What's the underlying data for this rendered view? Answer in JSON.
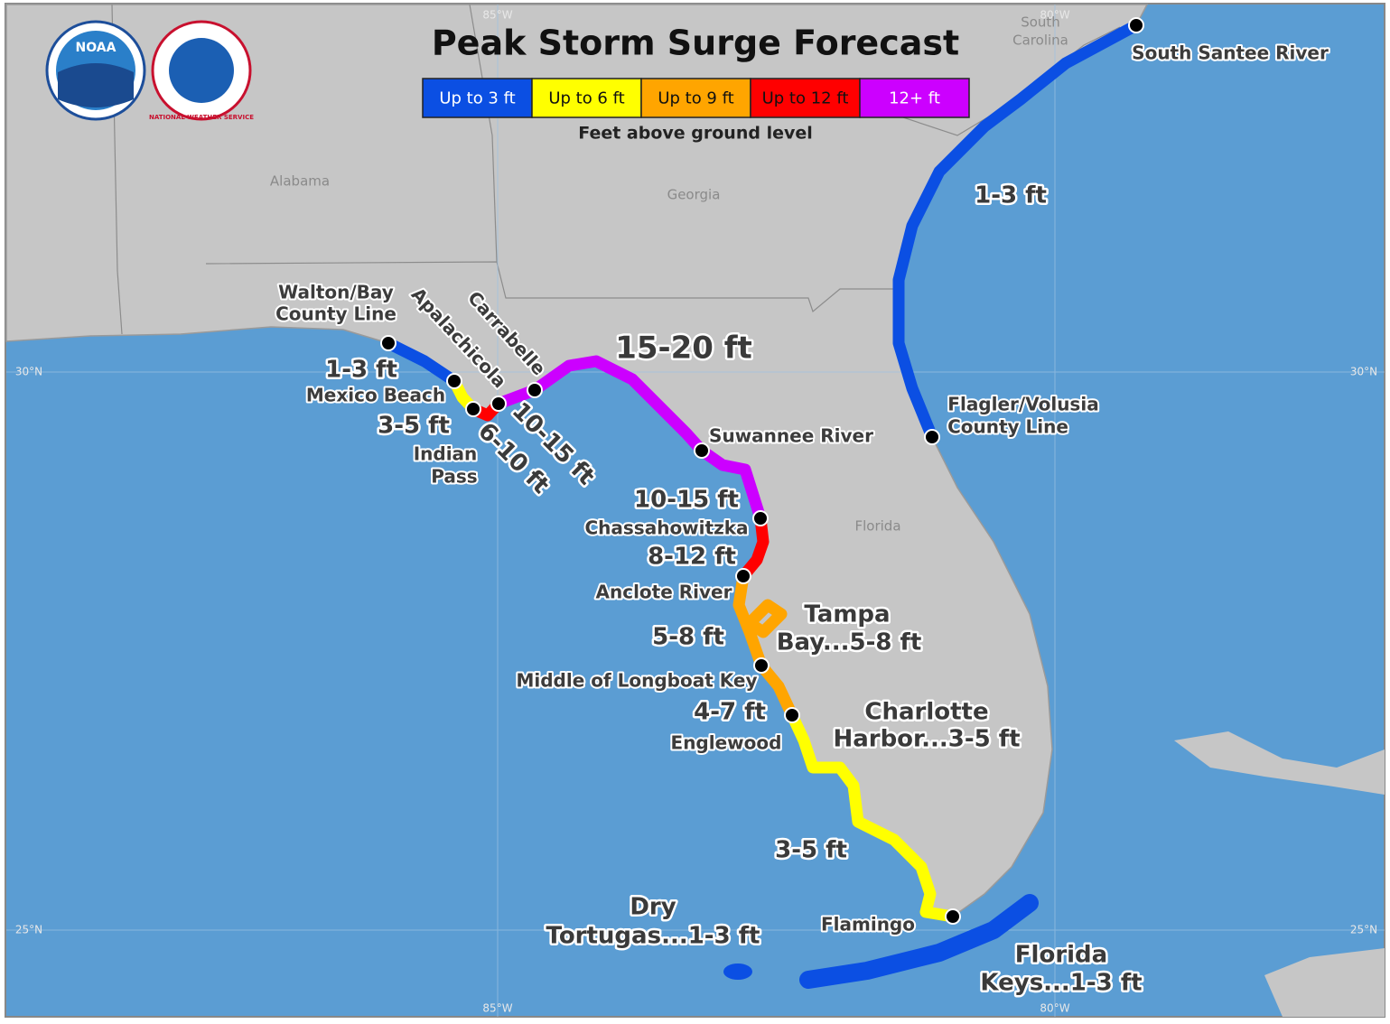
{
  "header": {
    "title": "Peak Storm Surge Forecast",
    "logos": [
      "NOAA",
      "NATIONAL WEATHER SERVICE"
    ]
  },
  "legend": {
    "items": [
      {
        "label": "Up to 3 ft",
        "color": "#0b4fe3"
      },
      {
        "label": "Up to 6 ft",
        "color": "#ffff00"
      },
      {
        "label": "Up to 9 ft",
        "color": "#ffa500"
      },
      {
        "label": "Up to 12 ft",
        "color": "#ff0000"
      },
      {
        "label": "12+ ft",
        "color": "#cc00ff"
      }
    ],
    "caption": "Feet above ground level"
  },
  "grid_labels": {
    "top": [
      "85°W",
      "80°W"
    ],
    "bottom": [
      "85°W",
      "80°W"
    ],
    "left": [
      "30°N",
      "25°N"
    ],
    "right": [
      "30°N",
      "25°N"
    ]
  },
  "states": [
    [
      "Alabama"
    ],
    [
      "Georgia"
    ],
    [
      "Florida"
    ],
    [
      "South",
      "Carolina"
    ]
  ],
  "locations": [
    [
      "South Santee River"
    ],
    [
      "Flagler/Volusia",
      "County Line"
    ],
    [
      "Walton/Bay",
      "County Line"
    ],
    [
      "Apalachicola"
    ],
    [
      "Carrabelle"
    ],
    [
      "Mexico Beach"
    ],
    [
      "Indian",
      "Pass"
    ],
    [
      "Suwannee River"
    ],
    [
      "Chassahowitzka"
    ],
    [
      "Anclote River"
    ],
    [
      "Middle of Longboat Key"
    ],
    [
      "Englewood"
    ],
    [
      "Flamingo"
    ]
  ],
  "surge": [
    [
      "1-3 ft"
    ],
    [
      "15-20 ft"
    ],
    [
      "1-3 ft"
    ],
    [
      "3-5 ft"
    ],
    [
      "6-10 ft"
    ],
    [
      "10-15 ft"
    ],
    [
      "10-15 ft"
    ],
    [
      "8-12 ft"
    ],
    [
      "5-8 ft"
    ],
    [
      "Tampa",
      "Bay...5-8 ft"
    ],
    [
      "4-7 ft"
    ],
    [
      "Charlotte",
      "Harbor...3-5 ft"
    ],
    [
      "3-5 ft"
    ],
    [
      "Dry",
      "Tortugas...1-3 ft"
    ],
    [
      "Florida",
      "Keys...1-3 ft"
    ]
  ]
}
